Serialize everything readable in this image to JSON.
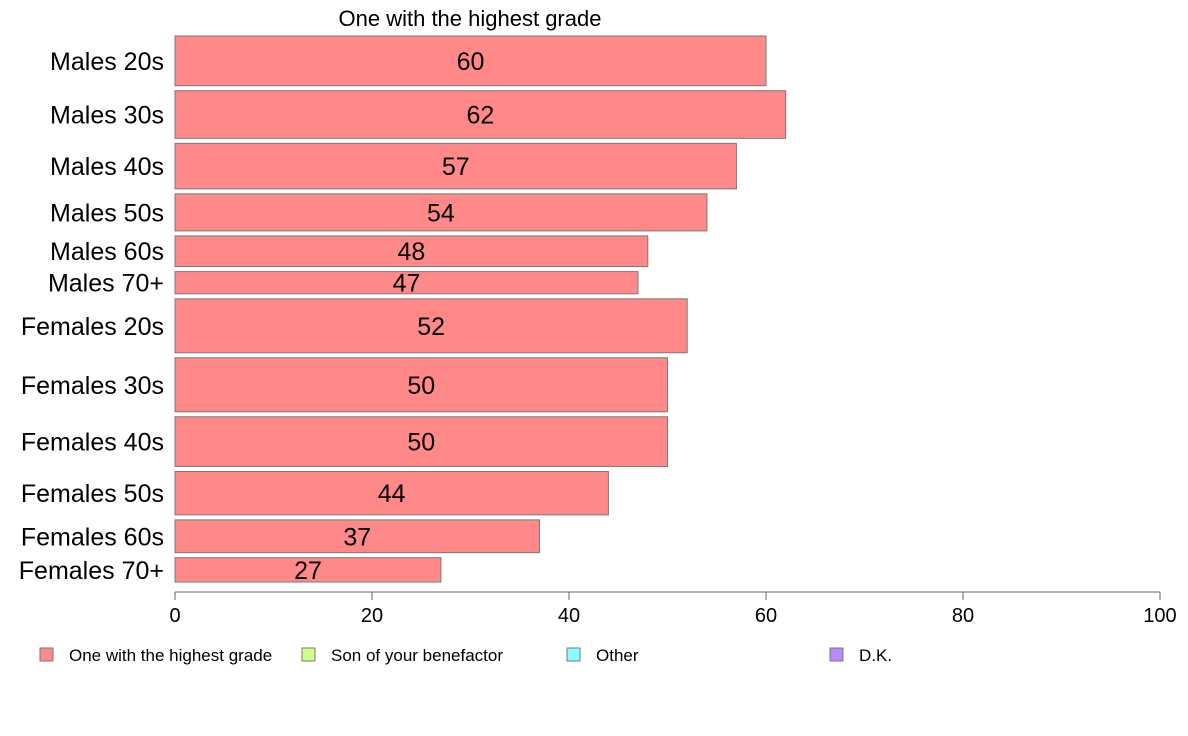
{
  "chart_data": {
    "type": "bar",
    "orientation": "horizontal",
    "title": "One with the highest grade",
    "categories": [
      "Males 20s",
      "Males 30s",
      "Males 40s",
      "Males 50s",
      "Males 60s",
      "Males 70+",
      "Females 20s",
      "Females 30s",
      "Females 40s",
      "Females 50s",
      "Females 60s",
      "Females 70+"
    ],
    "values": [
      60,
      62,
      57,
      54,
      48,
      47,
      52,
      50,
      50,
      44,
      37,
      27
    ],
    "bar_weights": [
      47,
      45,
      43,
      35,
      29,
      21,
      51,
      51,
      47,
      41,
      31,
      23
    ],
    "series_color": "#ff8888",
    "xlim": [
      0,
      100
    ],
    "xticks": [
      0,
      20,
      40,
      60,
      80,
      100
    ],
    "grid": false,
    "legend": {
      "placement": "bottom",
      "items": [
        {
          "label": "One with the highest grade",
          "color": "#ff8888"
        },
        {
          "label": "Son of your benefactor",
          "color": "#ccff88"
        },
        {
          "label": "Other",
          "color": "#88ffff"
        },
        {
          "label": "D.K.",
          "color": "#bb88ff"
        }
      ]
    }
  }
}
